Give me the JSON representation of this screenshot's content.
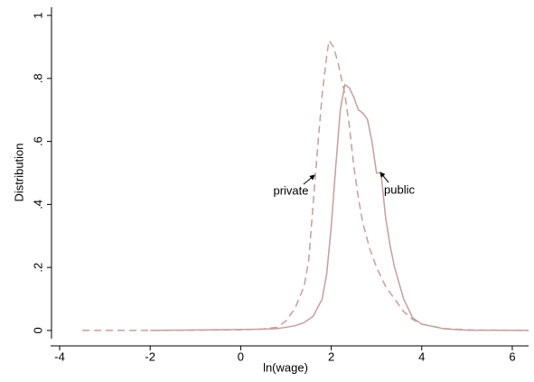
{
  "chart_data": {
    "type": "line",
    "x_label": "ln(wage)",
    "y_label": "Distribution",
    "series": [
      {
        "name": "private",
        "color": "#c4a09e",
        "dash": true,
        "x": [
          -3.5,
          -2,
          0,
          0.5,
          0.8,
          1.0,
          1.2,
          1.4,
          1.5,
          1.6,
          1.7,
          1.8,
          1.9,
          1.95,
          2.05,
          2.15,
          2.3,
          2.4,
          2.5,
          2.6,
          2.7,
          2.85,
          3.0,
          3.2,
          3.4,
          3.6,
          3.8,
          4.0,
          4.5,
          5.0,
          6.36
        ],
        "values": [
          0,
          0,
          0.002,
          0.005,
          0.01,
          0.03,
          0.07,
          0.14,
          0.22,
          0.4,
          0.58,
          0.75,
          0.87,
          0.92,
          0.9,
          0.85,
          0.75,
          0.65,
          0.52,
          0.42,
          0.34,
          0.26,
          0.2,
          0.14,
          0.1,
          0.06,
          0.035,
          0.02,
          0.006,
          0.002,
          0
        ]
      },
      {
        "name": "public",
        "color": "#c4a09e",
        "dash": false,
        "x": [
          -2,
          0,
          0.5,
          0.8,
          1.0,
          1.2,
          1.4,
          1.6,
          1.8,
          1.9,
          2.0,
          2.1,
          2.2,
          2.3,
          2.4,
          2.5,
          2.6,
          2.7,
          2.8,
          2.9,
          3.0,
          3.1,
          3.2,
          3.3,
          3.4,
          3.6,
          3.8,
          4.0,
          4.5,
          5.0,
          6.36
        ],
        "values": [
          0,
          0.003,
          0.004,
          0.006,
          0.01,
          0.015,
          0.025,
          0.045,
          0.1,
          0.18,
          0.33,
          0.52,
          0.7,
          0.78,
          0.77,
          0.74,
          0.7,
          0.69,
          0.67,
          0.6,
          0.5,
          0.5,
          0.36,
          0.27,
          0.2,
          0.1,
          0.04,
          0.02,
          0.005,
          0.001,
          0
        ]
      }
    ],
    "annotations": [
      "private",
      "public"
    ],
    "xlim": [
      -4.2,
      6.36
    ],
    "ylim": [
      -0.026,
      1.026
    ],
    "xticks": [
      -4,
      -2,
      0,
      2,
      4,
      6
    ],
    "yticks": [
      0,
      {
        "value": 0.2,
        "label": ".2"
      },
      {
        "value": 0.4,
        "label": ".4"
      },
      {
        "value": 0.6,
        "label": ".6"
      },
      {
        "value": 0.8,
        "label": ".8"
      },
      1
    ],
    "grid": false
  }
}
